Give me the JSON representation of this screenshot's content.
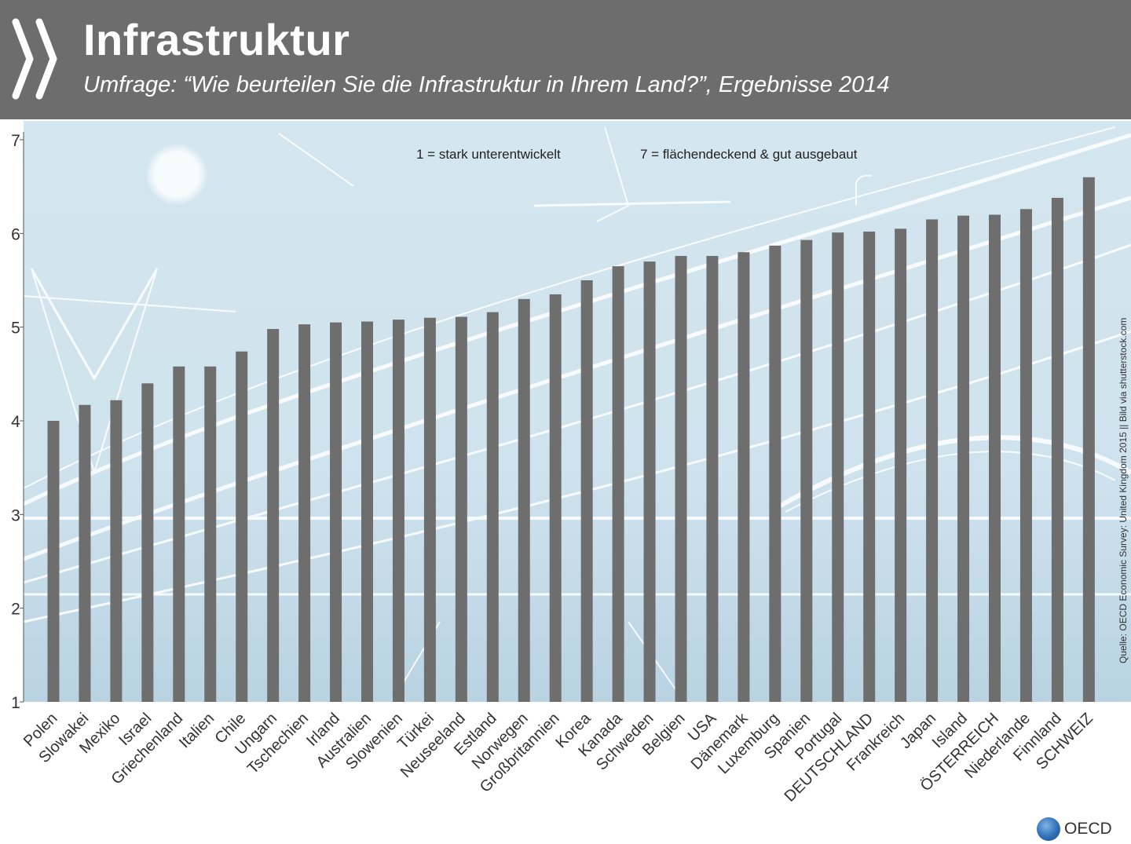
{
  "header": {
    "title": "Infrastruktur",
    "subtitle": "Umfrage: “Wie beurteilen Sie die Infrastruktur in Ihrem Land?”, Ergebnisse 2014"
  },
  "colors": {
    "header_bg": "#6d6d6d",
    "plot_bg": "#d8e9f1",
    "bar": "#6e6e6e",
    "line_art": "#ffffff"
  },
  "source": "Quelle: OECD Economic Survey: United Kingdom 2015 || Bild via shutterstock.com",
  "logo_text": "OECD",
  "chart_data": {
    "type": "bar",
    "title": "Infrastruktur",
    "categories": [
      "Polen",
      "Slowakei",
      "Mexiko",
      "Israel",
      "Griechenland",
      "Italien",
      "Chile",
      "Ungarn",
      "Tschechien",
      "Irland",
      "Australien",
      "Slowenien",
      "Türkei",
      "Neuseeland",
      "Estland",
      "Norwegen",
      "Großbritannien",
      "Korea",
      "Kanada",
      "Schweden",
      "Belgien",
      "USA",
      "Dänemark",
      "Luxemburg",
      "Spanien",
      "Portugal",
      "DEUTSCHLAND",
      "Frankreich",
      "Japan",
      "Island",
      "ÖSTERREICH",
      "Niederlande",
      "Finnland",
      "SCHWEIZ"
    ],
    "values": [
      4.0,
      4.17,
      4.22,
      4.4,
      4.58,
      4.58,
      4.74,
      4.98,
      5.03,
      5.05,
      5.06,
      5.08,
      5.1,
      5.11,
      5.16,
      5.3,
      5.35,
      5.5,
      5.65,
      5.7,
      5.76,
      5.76,
      5.8,
      5.87,
      5.93,
      6.01,
      6.02,
      6.05,
      6.15,
      6.19,
      6.2,
      6.26,
      6.38,
      6.6
    ],
    "ylim": [
      1,
      7
    ],
    "yticks": [
      1,
      2,
      3,
      4,
      5,
      6,
      7
    ],
    "annotations": [
      "1 = stark unterentwickelt",
      "7 = flächendeckend & gut ausgebaut"
    ],
    "grid": false
  }
}
